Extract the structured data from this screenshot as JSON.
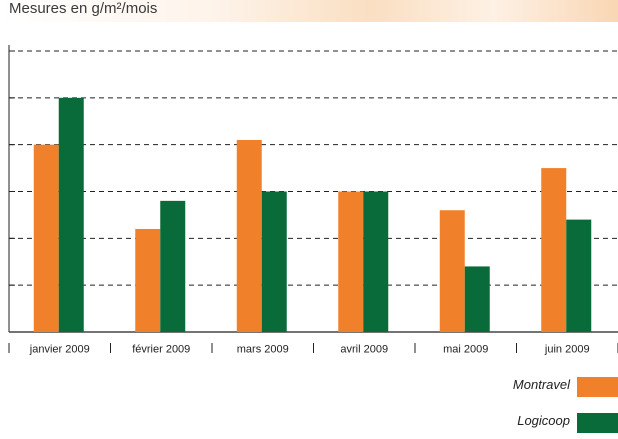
{
  "subtitle": "Mesures en g/m²/mois",
  "colors": {
    "montravel": "#f0812a",
    "logicoop": "#0a6b3a",
    "grid": "#222222",
    "axis": "#222222",
    "header_band": "#f9d9b7"
  },
  "chart_data": {
    "type": "bar",
    "title": "",
    "xlabel": "",
    "ylabel": "",
    "categories": [
      "janvier 2009",
      "février 2009",
      "mars 2009",
      "avril 2009",
      "mai 2009",
      "juin 2009"
    ],
    "series": [
      {
        "name": "Montravel",
        "values": [
          4.0,
          2.2,
          4.1,
          3.0,
          2.6,
          3.5
        ]
      },
      {
        "name": "Logicoop",
        "values": [
          5.0,
          2.8,
          3.0,
          3.0,
          1.4,
          2.4
        ]
      }
    ],
    "ylim": [
      0,
      6
    ],
    "grid": true,
    "grid_style": "dashed",
    "legend_position": "bottom-right",
    "y_tick_labels_shown": false
  }
}
